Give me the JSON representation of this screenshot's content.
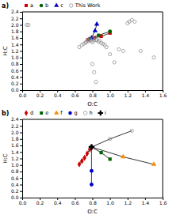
{
  "chart_data": [
    {
      "type": "line",
      "title": "a)",
      "xlabel": "O:C",
      "ylabel": "H:C",
      "legend": "top",
      "xlim": [
        0.0,
        1.6
      ],
      "ylim": [
        0.0,
        2.4
      ],
      "xticks": [
        {
          "value": 0.0,
          "label": "0.0"
        },
        0.2,
        0.4,
        0.6,
        0.8,
        {
          "value": 1.0,
          "label": "1.0"
        },
        1.2,
        1.4,
        1.6
      ],
      "yticks": [
        {
          "value": 0.0,
          "label": "0.0"
        },
        0.2,
        0.4,
        0.6,
        0.8,
        {
          "value": 1.0,
          "label": "1.0"
        },
        1.2,
        1.4,
        1.6,
        1.8,
        {
          "value": 2.0,
          "label": "2.0"
        },
        2.2,
        2.4
      ],
      "series": [
        {
          "name": "a",
          "type": "line",
          "color": "#cc0000",
          "marker": "square",
          "x": [
            0.75,
            0.82,
            0.9,
            1.0
          ],
          "values": [
            1.55,
            1.6,
            1.65,
            1.75
          ]
        },
        {
          "name": "b",
          "type": "line",
          "color": "#006600",
          "marker": "circle",
          "x": [
            0.77,
            0.87,
            1.0
          ],
          "values": [
            1.57,
            1.68,
            1.8
          ]
        },
        {
          "name": "c",
          "type": "line",
          "color": "#0000cc",
          "marker": "triangle",
          "x": [
            0.79,
            0.83,
            0.85
          ],
          "values": [
            1.6,
            1.82,
            2.02
          ]
        },
        {
          "name": "This Work",
          "type": "scatter",
          "color": "#888888",
          "marker": "open-circle",
          "x": [
            0.05,
            0.07,
            0.65,
            0.68,
            0.7,
            0.72,
            0.73,
            0.74,
            0.75,
            0.76,
            0.77,
            0.78,
            0.79,
            0.8,
            0.81,
            0.82,
            0.83,
            0.84,
            0.85,
            0.87,
            0.88,
            0.9,
            0.92,
            0.94,
            0.96,
            1.0,
            1.05,
            1.1,
            1.15,
            1.2,
            1.22,
            1.25,
            1.28,
            1.35,
            1.5,
            0.8,
            0.82,
            0.84
          ],
          "values": [
            2.0,
            2.0,
            1.32,
            1.38,
            1.42,
            1.45,
            1.48,
            1.52,
            1.5,
            1.55,
            1.58,
            1.53,
            1.5,
            1.47,
            1.58,
            1.53,
            1.62,
            1.55,
            1.53,
            1.48,
            1.52,
            1.45,
            1.42,
            1.38,
            1.32,
            1.1,
            0.85,
            1.25,
            1.2,
            2.05,
            2.1,
            2.15,
            2.1,
            1.2,
            1.0,
            0.8,
            0.55,
            0.25
          ]
        }
      ]
    },
    {
      "type": "line",
      "title": "b)",
      "xlabel": "O:C",
      "ylabel": "H:C",
      "legend": "top",
      "xlim": [
        0.0,
        1.6
      ],
      "ylim": [
        0.0,
        2.4
      ],
      "xticks": [
        {
          "value": 0.0,
          "label": "0.0"
        },
        0.2,
        0.4,
        0.6,
        0.8,
        {
          "value": 1.0,
          "label": "1.0"
        },
        1.2,
        1.4,
        1.6
      ],
      "yticks": [
        {
          "value": 0.0,
          "label": "0.0"
        },
        0.2,
        0.4,
        0.6,
        0.8,
        {
          "value": 1.0,
          "label": "1.0"
        },
        1.2,
        1.4,
        1.6,
        1.8,
        {
          "value": 2.0,
          "label": "2.0"
        },
        2.2,
        2.4
      ],
      "series": [
        {
          "name": "d",
          "type": "line",
          "color": "#cc0000",
          "marker": "diamond",
          "x": [
            0.65,
            0.68,
            0.71,
            0.74,
            0.77,
            0.79
          ],
          "values": [
            1.02,
            1.12,
            1.22,
            1.35,
            1.48,
            1.55
          ]
        },
        {
          "name": "e",
          "type": "line",
          "color": "#006600",
          "marker": "square",
          "x": [
            0.79,
            0.9,
            1.0
          ],
          "values": [
            1.55,
            1.38,
            1.18
          ]
        },
        {
          "name": "f",
          "type": "line",
          "color": "#ff8800",
          "marker": "triangle",
          "x": [
            0.79,
            1.15,
            1.5
          ],
          "values": [
            1.55,
            1.25,
            1.02
          ]
        },
        {
          "name": "g",
          "type": "line",
          "color": "#0000cc",
          "marker": "circle",
          "x": [
            0.79,
            0.79,
            0.79
          ],
          "values": [
            0.4,
            0.82,
            1.55
          ]
        },
        {
          "name": "h",
          "type": "line",
          "color": "#888888",
          "marker": "open-circle",
          "x": [
            0.79,
            1.0,
            1.25
          ],
          "values": [
            1.55,
            1.8,
            2.05
          ]
        },
        {
          "name": "i",
          "type": "scatter",
          "color": "black",
          "marker": "plus",
          "x": [
            0.79
          ],
          "values": [
            1.55
          ]
        }
      ]
    }
  ]
}
